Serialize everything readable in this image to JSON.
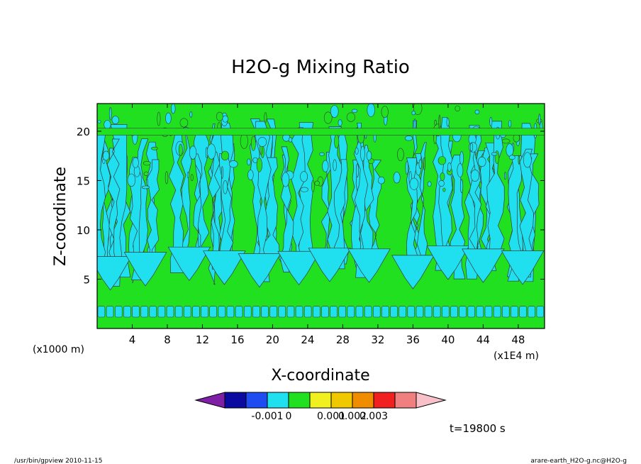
{
  "chart_data": {
    "type": "heatmap",
    "title": "H2O-g Mixing Ratio",
    "xlabel": "X-coordinate",
    "ylabel": "Z-coordinate",
    "x_unit_left": "(x1000 m)",
    "x_unit_right": "(x1E4 m)",
    "xlim": [
      0,
      51
    ],
    "ylim": [
      0,
      22.8
    ],
    "x_ticks": [
      "4",
      "8",
      "12",
      "16",
      "20",
      "24",
      "28",
      "32",
      "36",
      "40",
      "44",
      "48"
    ],
    "y_ticks": [
      "5",
      "10",
      "15",
      "20"
    ],
    "colorbar": {
      "labels": [
        "-0.001",
        "0",
        "0.001",
        "0.002",
        "0.003"
      ],
      "colors": [
        "#7f1fa6",
        "#0a0aa0",
        "#1f4cf0",
        "#20e0f0",
        "#20e020",
        "#f0f020",
        "#f0c800",
        "#f08c00",
        "#f02020",
        "#f08080",
        "#f8c0c8"
      ]
    },
    "time_label": "t=19800 s",
    "dominant_levels": {
      "above_zero": "#20e020",
      "below_zero": "#20e0f0"
    },
    "features": {
      "plume_centers_x": [
        1.5,
        5.5,
        10.5,
        14.5,
        18.5,
        23,
        26.5,
        31,
        36,
        40,
        44,
        48.5
      ],
      "plume_base_z": 4.5,
      "low_band_z": 1.7
    }
  },
  "footer": {
    "left": "/usr/bin/gpview   2010-11-15",
    "right": "arare-earth_H2O-g.nc@H2O-g"
  }
}
